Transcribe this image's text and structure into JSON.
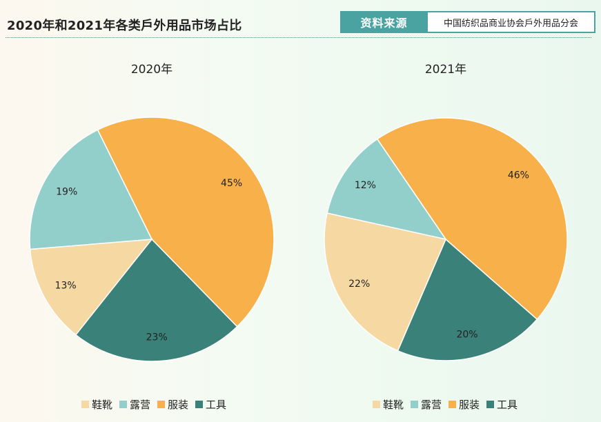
{
  "header": {
    "title": "2020年和2021年各类戶外用品市场占比",
    "source_label": "资料来源",
    "source_value": "中国纺织品商业协会戶外用品分会"
  },
  "colors": {
    "鞋靴": "#f6d8a3",
    "露营": "#93cfca",
    "服装": "#f7b04a",
    "工具": "#3a8179",
    "accent": "#4aa3a0"
  },
  "chart_data": [
    {
      "type": "pie",
      "title": "2020年",
      "labels": [
        "服装",
        "工具",
        "鞋靴",
        "露营"
      ],
      "values": [
        45,
        23,
        13,
        19
      ],
      "value_labels": [
        "45%",
        "23%",
        "13%",
        "19%"
      ],
      "legend": [
        "鞋靴",
        "露营",
        "服装",
        "工具"
      ],
      "legend_position": "bottom"
    },
    {
      "type": "pie",
      "title": "2021年",
      "labels": [
        "服装",
        "工具",
        "鞋靴",
        "露营"
      ],
      "values": [
        46,
        20,
        22,
        12
      ],
      "value_labels": [
        "46%",
        "20%",
        "22%",
        "12%"
      ],
      "legend": [
        "鞋靴",
        "露营",
        "服装",
        "工具"
      ],
      "legend_position": "bottom"
    }
  ]
}
